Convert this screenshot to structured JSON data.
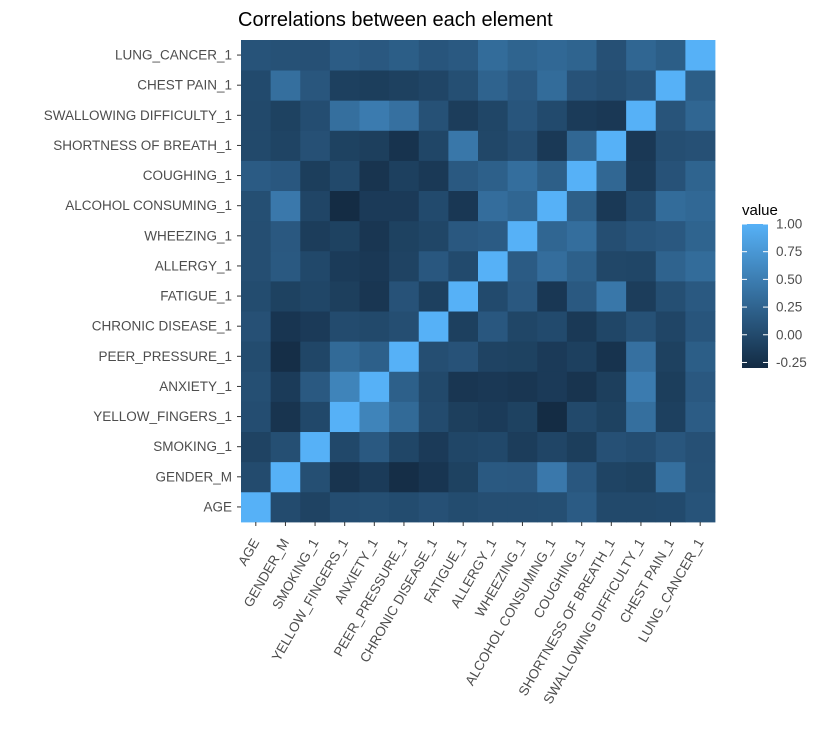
{
  "chart_data": {
    "type": "heatmap",
    "title": "Correlations between each element",
    "xlabel": "",
    "ylabel": "",
    "variables": [
      "AGE",
      "GENDER_M",
      "SMOKING_1",
      "YELLOW_FINGERS_1",
      "ANXIETY_1",
      "PEER_PRESSURE_1",
      "CHRONIC DISEASE_1",
      "FATIGUE_1",
      "ALLERGY_1",
      "WHEEZING_1",
      "ALCOHOL CONSUMING_1",
      "COUGHING_1",
      "SHORTNESS OF BREATH_1",
      "SWALLOWING DIFFICULTY_1",
      "CHEST PAIN_1",
      "LUNG_CANCER_1"
    ],
    "matrix": [
      [
        1.0,
        0.01,
        -0.07,
        0.03,
        0.05,
        0.02,
        0.06,
        0.02,
        0.04,
        0.04,
        0.05,
        0.17,
        -0.01,
        -0.01,
        0.0,
        0.09
      ],
      [
        0.01,
        1.0,
        0.05,
        -0.21,
        -0.14,
        -0.27,
        -0.2,
        -0.08,
        0.15,
        0.14,
        0.45,
        0.13,
        -0.06,
        -0.08,
        0.36,
        0.07
      ],
      [
        -0.07,
        0.05,
        1.0,
        -0.02,
        0.15,
        -0.04,
        -0.15,
        -0.04,
        -0.02,
        -0.13,
        -0.05,
        -0.12,
        0.06,
        0.03,
        0.12,
        0.06
      ],
      [
        0.03,
        -0.21,
        -0.02,
        1.0,
        0.56,
        0.31,
        0.01,
        -0.11,
        -0.14,
        -0.08,
        -0.29,
        -0.01,
        -0.08,
        0.36,
        -0.1,
        0.18
      ],
      [
        0.05,
        -0.14,
        0.15,
        0.56,
        1.0,
        0.21,
        -0.01,
        -0.19,
        -0.17,
        -0.19,
        -0.15,
        -0.21,
        -0.11,
        0.48,
        -0.12,
        0.14
      ],
      [
        0.02,
        -0.27,
        -0.04,
        0.31,
        0.21,
        1.0,
        0.04,
        0.08,
        -0.07,
        -0.08,
        -0.15,
        -0.1,
        -0.22,
        0.37,
        -0.09,
        0.19
      ],
      [
        0.06,
        -0.2,
        -0.15,
        0.01,
        -0.01,
        0.04,
        1.0,
        -0.1,
        0.13,
        -0.04,
        0.0,
        -0.16,
        -0.04,
        0.07,
        -0.05,
        0.11
      ],
      [
        0.02,
        -0.08,
        -0.04,
        -0.11,
        -0.19,
        0.08,
        -0.1,
        1.0,
        0.0,
        0.14,
        -0.18,
        0.15,
        0.44,
        -0.13,
        0.05,
        0.15
      ],
      [
        0.04,
        0.15,
        -0.02,
        -0.14,
        -0.17,
        -0.07,
        0.13,
        0.0,
        1.0,
        0.17,
        0.34,
        0.21,
        -0.03,
        -0.04,
        0.24,
        0.33
      ],
      [
        0.04,
        0.14,
        -0.13,
        -0.08,
        -0.19,
        -0.08,
        -0.04,
        0.14,
        0.17,
        1.0,
        0.27,
        0.35,
        0.04,
        0.11,
        0.14,
        0.25
      ],
      [
        0.05,
        0.45,
        -0.05,
        -0.29,
        -0.15,
        -0.15,
        0.0,
        -0.18,
        0.34,
        0.27,
        1.0,
        0.2,
        -0.16,
        -0.0,
        0.33,
        0.29
      ],
      [
        0.17,
        0.13,
        -0.12,
        -0.01,
        -0.21,
        -0.1,
        -0.16,
        0.15,
        0.21,
        0.35,
        0.2,
        1.0,
        0.28,
        -0.14,
        0.08,
        0.25
      ],
      [
        -0.01,
        -0.06,
        0.06,
        -0.08,
        -0.11,
        -0.22,
        -0.04,
        0.44,
        -0.03,
        0.04,
        -0.16,
        0.28,
        1.0,
        -0.17,
        0.04,
        0.06
      ],
      [
        -0.01,
        -0.08,
        0.03,
        0.36,
        0.48,
        0.37,
        0.07,
        -0.13,
        -0.04,
        0.11,
        -0.0,
        -0.14,
        -0.17,
        1.0,
        0.1,
        0.27
      ],
      [
        0.0,
        0.36,
        0.12,
        -0.1,
        -0.12,
        -0.09,
        -0.05,
        0.05,
        0.24,
        0.14,
        0.33,
        0.08,
        0.04,
        0.1,
        1.0,
        0.19
      ],
      [
        0.09,
        0.07,
        0.06,
        0.18,
        0.14,
        0.19,
        0.11,
        0.15,
        0.33,
        0.25,
        0.29,
        0.25,
        0.06,
        0.27,
        0.19,
        1.0
      ]
    ],
    "legend": {
      "title": "value",
      "position": "right",
      "ticks": [
        "1.00",
        "0.75",
        "0.50",
        "0.25",
        "0.00",
        "-0.25"
      ],
      "tick_values": [
        1.0,
        0.75,
        0.5,
        0.25,
        0.0,
        -0.25
      ],
      "range": [
        -0.3,
        1.0
      ],
      "low_color": "#132B43",
      "high_color": "#56B1F7"
    },
    "grid": true,
    "panel_background": "#ebebeb"
  }
}
